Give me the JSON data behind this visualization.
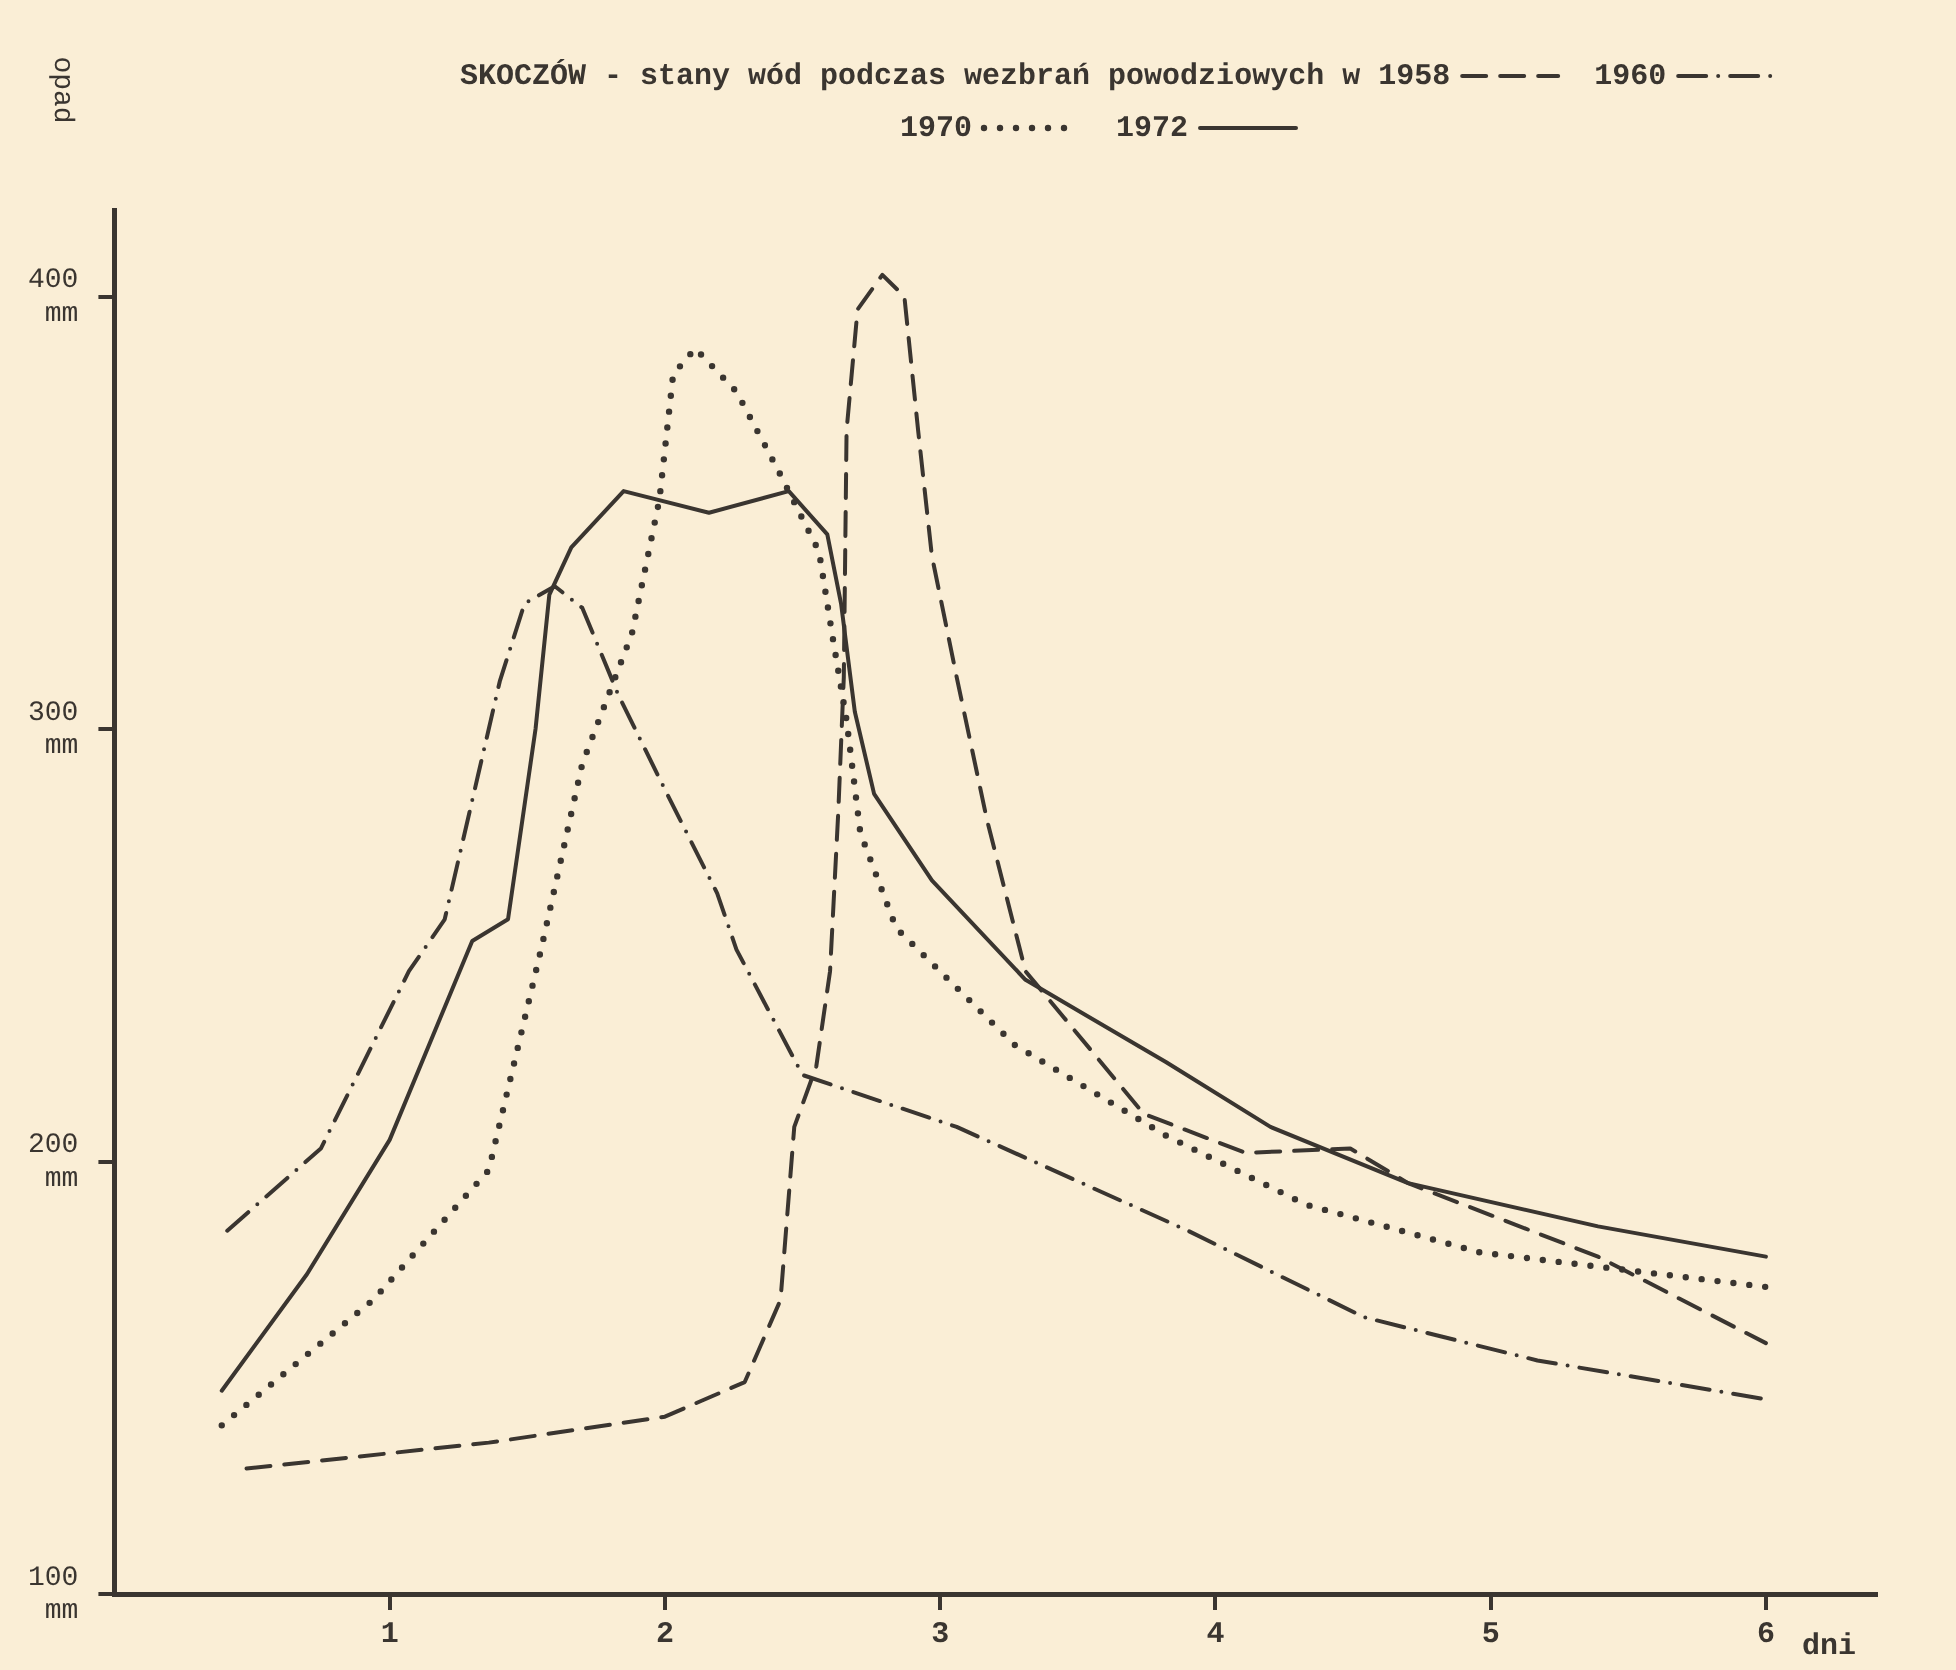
{
  "chart_data": {
    "type": "line",
    "title": "SKOCZÓW - stany wód podczas wezbrań powodziowych w",
    "xlabel": "dni",
    "ylabel": "opad",
    "xlim": [
      0,
      6.4
    ],
    "xticks": [
      1,
      2,
      3,
      4,
      5,
      6
    ],
    "ylim": [
      100,
      420
    ],
    "yticks": [
      {
        "value": 100,
        "label": "100 mm"
      },
      {
        "value": 200,
        "label": "200 mm"
      },
      {
        "value": 300,
        "label": "300 mm"
      },
      {
        "value": 400,
        "label": "400 mm"
      }
    ],
    "grid": false,
    "legend": "top",
    "marker": "none",
    "series": [
      {
        "name": "1958",
        "color": "#3a3530",
        "line_style": "dashed",
        "x": [
          0.48,
          1.36,
          2.0,
          2.29,
          2.42,
          2.47,
          2.55,
          2.6,
          2.63,
          2.65,
          2.66,
          2.7,
          2.79,
          2.87,
          2.92,
          2.97,
          3.06,
          3.17,
          3.31,
          3.74,
          4.11,
          4.49,
          4.7,
          5.39,
          6.0
        ],
        "values": [
          129,
          135,
          141,
          149,
          168,
          208,
          222,
          244,
          281,
          312,
          369,
          397,
          405,
          400,
          369,
          340,
          312,
          279,
          244,
          211,
          202,
          203,
          195,
          178,
          158
        ]
      },
      {
        "name": "1960",
        "color": "#3a3530",
        "line_style": "dashdot",
        "x": [
          0.41,
          0.75,
          1.07,
          1.2,
          1.32,
          1.4,
          1.49,
          1.6,
          1.7,
          1.83,
          2.0,
          2.19,
          2.26,
          2.5,
          3.06,
          3.9,
          4.54,
          5.17,
          6.0
        ],
        "values": [
          184,
          203,
          244,
          256,
          289,
          311,
          329,
          333,
          328,
          308,
          286,
          262,
          249,
          220,
          208,
          184,
          164,
          154,
          145
        ]
      },
      {
        "name": "1970",
        "color": "#3a3530",
        "line_style": "dotted",
        "x": [
          0.39,
          0.94,
          1.36,
          1.55,
          1.7,
          1.88,
          1.98,
          2.03,
          2.11,
          2.26,
          2.41,
          2.56,
          2.61,
          2.66,
          2.71,
          2.84,
          3.27,
          3.82,
          4.33,
          4.96,
          6.0
        ],
        "values": [
          139,
          168,
          198,
          249,
          292,
          322,
          353,
          382,
          388,
          378,
          360,
          341,
          321,
          302,
          276,
          254,
          227,
          206,
          190,
          179,
          171
        ]
      },
      {
        "name": "1972",
        "color": "#3a3530",
        "line_style": "solid",
        "x": [
          0.39,
          0.7,
          1.0,
          1.3,
          1.43,
          1.53,
          1.58,
          1.66,
          1.85,
          2.16,
          2.45,
          2.59,
          2.64,
          2.69,
          2.76,
          2.97,
          3.31,
          3.82,
          4.2,
          4.7,
          5.39,
          6.0
        ],
        "values": [
          147,
          174,
          205,
          251,
          256,
          300,
          331,
          342,
          355,
          350,
          355,
          345,
          329,
          304,
          285,
          265,
          242,
          223,
          208,
          195,
          185,
          178
        ]
      }
    ]
  }
}
